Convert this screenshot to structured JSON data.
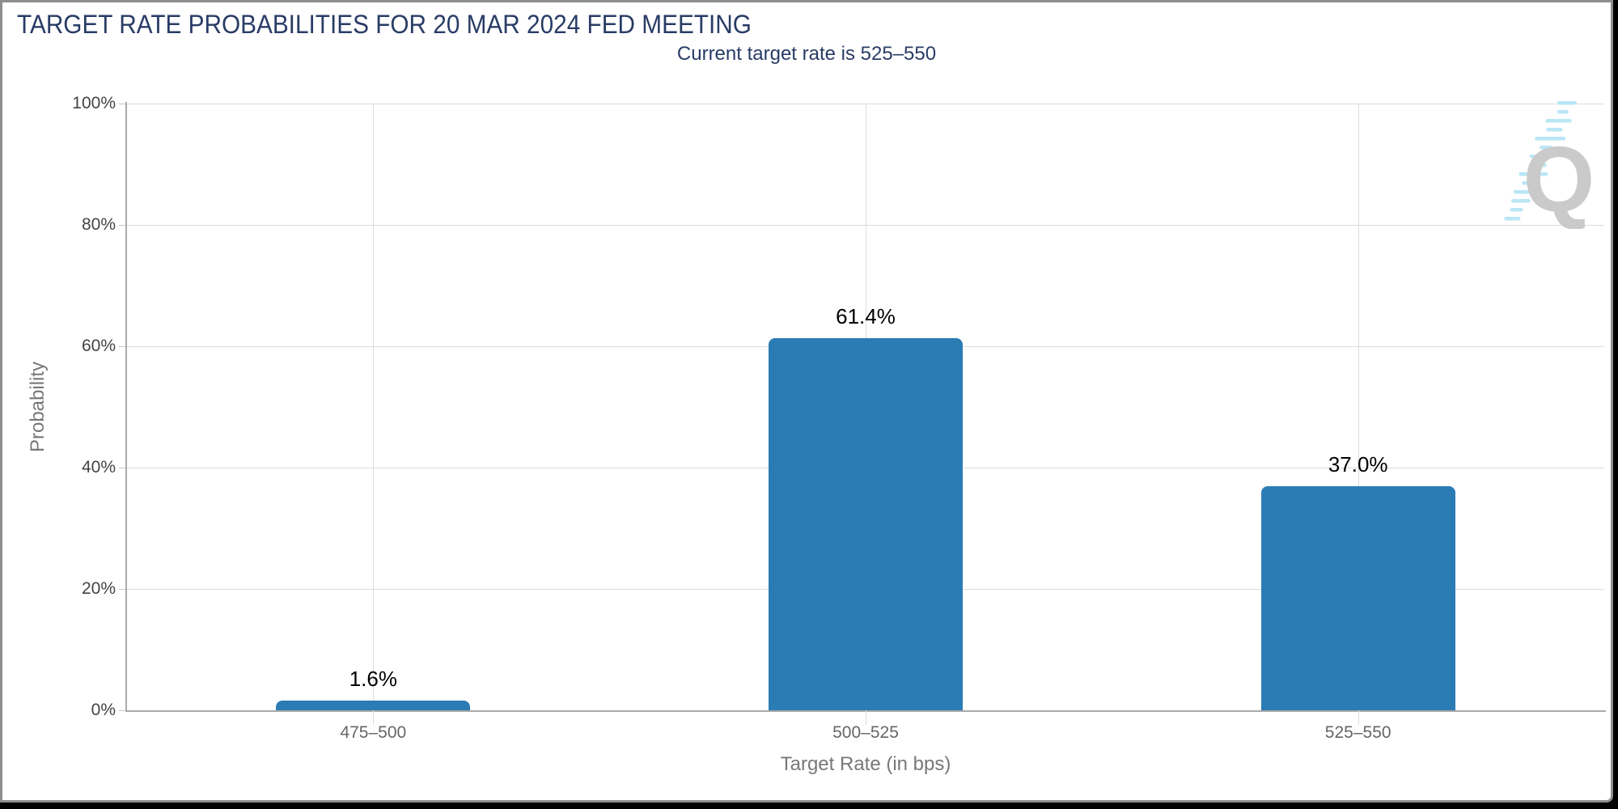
{
  "header": {
    "title": "TARGET RATE PROBABILITIES FOR 20 MAR 2024 FED MEETING",
    "subtitle": "Current target rate is 525–550"
  },
  "chart_data": {
    "type": "bar",
    "title": "TARGET RATE PROBABILITIES FOR 20 MAR 2024 FED MEETING",
    "subtitle": "Current target rate is 525–550",
    "categories": [
      "475–500",
      "500–525",
      "525–550"
    ],
    "values": [
      1.6,
      61.4,
      37.0
    ],
    "value_labels": [
      "1.6%",
      "61.4%",
      "37.0%"
    ],
    "xlabel": "Target Rate (in bps)",
    "ylabel": "Probability",
    "ylim": [
      0,
      100
    ],
    "yticks": [
      0,
      20,
      40,
      60,
      80,
      100
    ],
    "ytick_labels": [
      "0%",
      "20%",
      "40%",
      "60%",
      "80%",
      "100%"
    ],
    "bar_color": "#2b7cb5",
    "grid": true,
    "legend": "none"
  },
  "colors": {
    "title_navy": "#293c66",
    "bar_blue": "#2b7cb5",
    "axis_line": "#a9a9a9",
    "gridline": "#dcdcdc",
    "tick_label_gray": "#444444",
    "axis_title_gray": "#787878",
    "card_border": "#8e8e8e",
    "page_background": "#000000",
    "watermark_gray": "#c8c8c8",
    "watermark_blue": "#b7e5f6"
  },
  "watermark": {
    "icon": "q-logo",
    "letter": "Q"
  }
}
